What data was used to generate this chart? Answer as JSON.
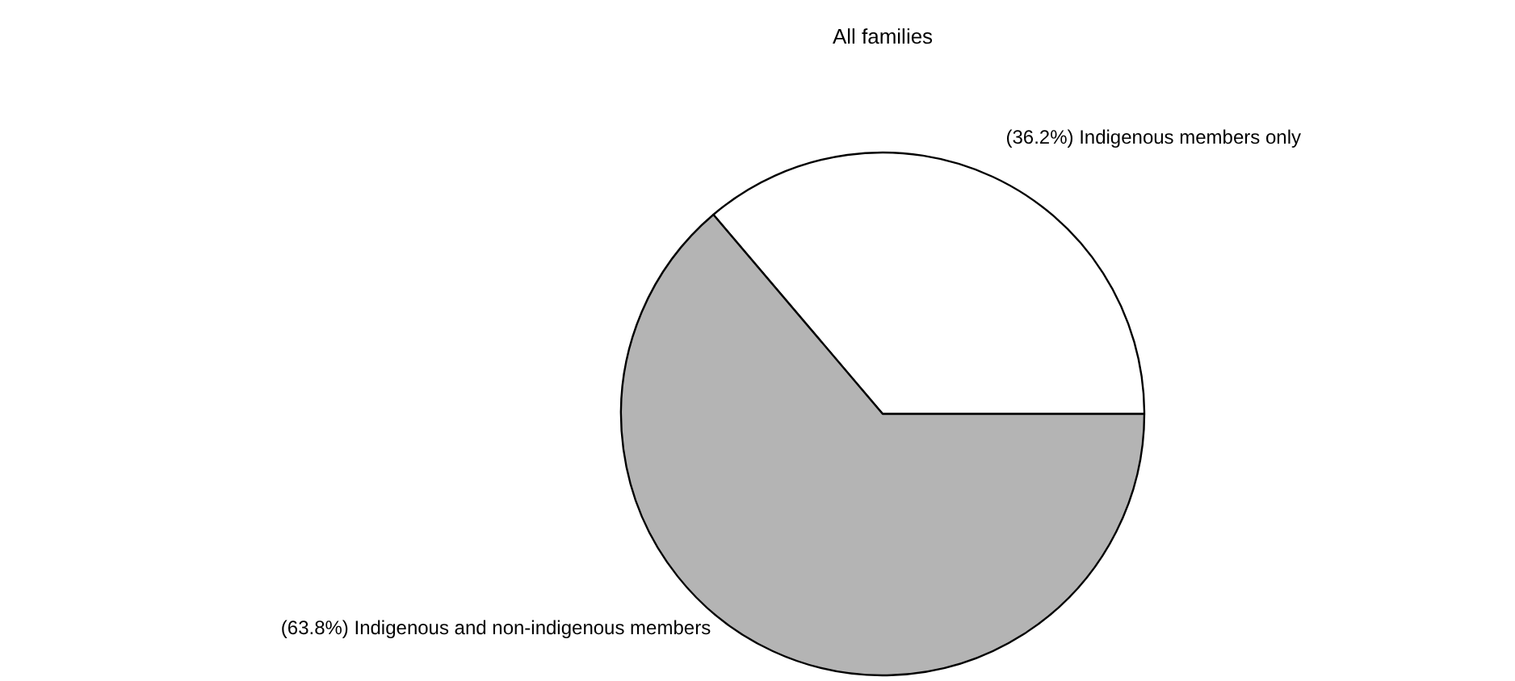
{
  "chart_data": {
    "type": "pie",
    "title": "All families",
    "categories": [
      "Indigenous members only",
      "Indigenous and non-indigenous members"
    ],
    "values": [
      36.2,
      63.8
    ],
    "colors": [
      "#ffffff",
      "#b4b4b4"
    ],
    "value_labels": [
      "(36.2%)",
      "(63.8%)"
    ]
  }
}
